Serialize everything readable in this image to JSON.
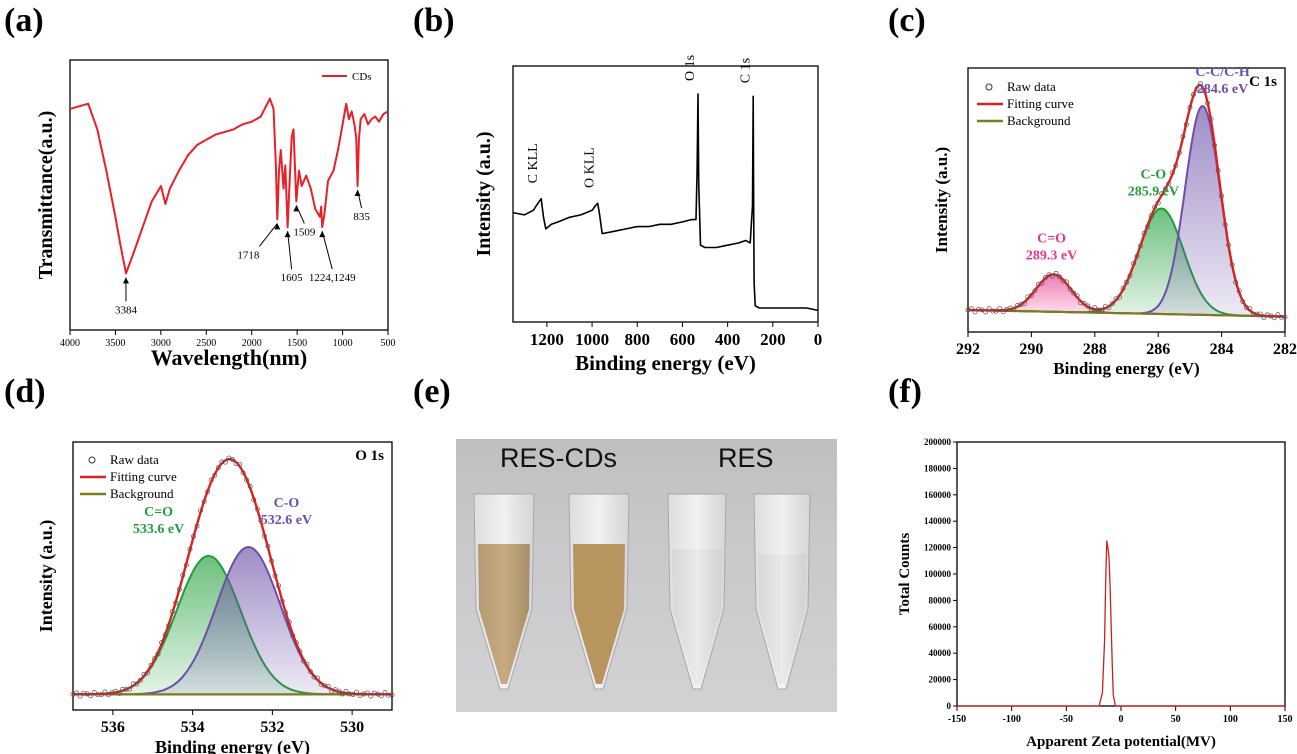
{
  "panels": {
    "a": {
      "label": "(a)"
    },
    "b": {
      "label": "(b)"
    },
    "c": {
      "label": "(c)"
    },
    "d": {
      "label": "(d)"
    },
    "e": {
      "label": "(e)"
    },
    "f": {
      "label": "(f)"
    }
  },
  "photo": {
    "left_label": "RES-CDs",
    "right_label": "RES"
  },
  "chart_data": [
    {
      "id": "a",
      "type": "line",
      "xlabel": "Wavelength(nm)",
      "ylabel": "Transmittance(a.u.)",
      "xlim": [
        4000,
        500
      ],
      "x_ticks": [
        4000,
        3500,
        3000,
        2500,
        2000,
        1500,
        1000,
        500
      ],
      "series": [
        {
          "name": "CDs",
          "color": "#e8202a",
          "x": [
            4000,
            3900,
            3800,
            3700,
            3600,
            3500,
            3450,
            3400,
            3384,
            3300,
            3200,
            3100,
            3000,
            2950,
            2900,
            2800,
            2700,
            2600,
            2500,
            2400,
            2300,
            2200,
            2100,
            2000,
            1900,
            1800,
            1760,
            1735,
            1718,
            1700,
            1680,
            1650,
            1630,
            1605,
            1580,
            1560,
            1540,
            1520,
            1509,
            1480,
            1450,
            1400,
            1350,
            1300,
            1249,
            1235,
            1224,
            1200,
            1160,
            1100,
            1050,
            1000,
            960,
            930,
            900,
            870,
            850,
            835,
            820,
            800,
            760,
            720,
            680,
            640,
            600,
            550,
            500
          ],
          "y": [
            0.86,
            0.87,
            0.88,
            0.78,
            0.62,
            0.44,
            0.34,
            0.25,
            0.22,
            0.3,
            0.4,
            0.5,
            0.56,
            0.49,
            0.55,
            0.62,
            0.68,
            0.72,
            0.74,
            0.76,
            0.77,
            0.78,
            0.8,
            0.81,
            0.83,
            0.9,
            0.86,
            0.65,
            0.43,
            0.62,
            0.7,
            0.55,
            0.64,
            0.4,
            0.6,
            0.75,
            0.78,
            0.6,
            0.5,
            0.62,
            0.56,
            0.6,
            0.55,
            0.47,
            0.44,
            0.48,
            0.4,
            0.45,
            0.58,
            0.62,
            0.7,
            0.8,
            0.88,
            0.82,
            0.85,
            0.8,
            0.75,
            0.56,
            0.74,
            0.82,
            0.84,
            0.8,
            0.82,
            0.83,
            0.81,
            0.84,
            0.85
          ]
        }
      ],
      "annotations": [
        {
          "text": "3384",
          "x": 3384
        },
        {
          "text": "1718",
          "x": 1718
        },
        {
          "text": "1605",
          "x": 1605
        },
        {
          "text": "1509",
          "x": 1509
        },
        {
          "text": "1224,1249",
          "x": 1224
        },
        {
          "text": "835",
          "x": 835
        }
      ],
      "legend": "top-right"
    },
    {
      "id": "b",
      "type": "line",
      "xlabel": "Binding energy (eV)",
      "ylabel": "Intensity (a.u.)",
      "xlim": [
        1350,
        0
      ],
      "x_ticks": [
        1200,
        1000,
        800,
        600,
        400,
        200,
        0
      ],
      "series": [
        {
          "name": "",
          "color": "#000000",
          "x": [
            1350,
            1300,
            1260,
            1240,
            1225,
            1215,
            1205,
            1180,
            1150,
            1100,
            1050,
            1000,
            985,
            975,
            968,
            955,
            900,
            850,
            800,
            750,
            700,
            650,
            600,
            560,
            540,
            535,
            531,
            528,
            520,
            500,
            450,
            400,
            350,
            320,
            300,
            290,
            287,
            285,
            283,
            278,
            260,
            200,
            150,
            100,
            50,
            0
          ],
          "y": [
            0.42,
            0.41,
            0.43,
            0.46,
            0.48,
            0.4,
            0.35,
            0.37,
            0.38,
            0.4,
            0.41,
            0.43,
            0.45,
            0.46,
            0.42,
            0.33,
            0.34,
            0.35,
            0.36,
            0.36,
            0.37,
            0.37,
            0.38,
            0.39,
            0.39,
            0.6,
            0.93,
            0.55,
            0.28,
            0.27,
            0.27,
            0.28,
            0.29,
            0.3,
            0.29,
            0.45,
            0.92,
            0.5,
            0.12,
            0.02,
            0.01,
            0.01,
            0.01,
            0.01,
            0.01,
            0.0
          ]
        }
      ],
      "annotations": [
        {
          "text": "C KLL",
          "x": 1225
        },
        {
          "text": "O KLL",
          "x": 975
        },
        {
          "text": "O 1s",
          "x": 531
        },
        {
          "text": "C 1s",
          "x": 285
        }
      ]
    },
    {
      "id": "c",
      "type": "line",
      "title": "C 1s",
      "xlabel": "Binding energy (eV)",
      "ylabel": "Intensity (a.u.)",
      "xlim": [
        292,
        282
      ],
      "x_ticks": [
        292,
        290,
        288,
        286,
        284,
        282
      ],
      "peaks": [
        {
          "name": "C=O",
          "center": 289.3,
          "label": "289.3 eV",
          "height": 0.17,
          "sigma": 0.55,
          "color": "#e8358c"
        },
        {
          "name": "C-O",
          "center": 285.9,
          "label": "285.9 eV",
          "height": 0.48,
          "sigma": 0.7,
          "color": "#1f9e3a"
        },
        {
          "name": "C-C/C-H",
          "center": 284.6,
          "label": "284.6 eV",
          "height": 0.95,
          "sigma": 0.55,
          "color": "#6c4fa8"
        }
      ],
      "legend": {
        "position": "top-left",
        "entries": [
          "Raw data",
          "Fitting curve",
          "Background"
        ]
      }
    },
    {
      "id": "d",
      "type": "line",
      "title": "O 1s",
      "xlabel": "Binding energy (eV)",
      "ylabel": "Intensity (a.u.)",
      "xlim": [
        537,
        529
      ],
      "x_ticks": [
        536,
        534,
        532,
        530
      ],
      "peaks": [
        {
          "name": "C=O",
          "center": 533.6,
          "label": "533.6 eV",
          "height": 0.62,
          "sigma": 0.8,
          "color": "#1f9e3a"
        },
        {
          "name": "C-O",
          "center": 532.6,
          "label": "532.6 eV",
          "height": 0.66,
          "sigma": 0.8,
          "color": "#6c4fa8"
        }
      ],
      "legend": {
        "position": "top-left",
        "entries": [
          "Raw data",
          "Fitting curve",
          "Background"
        ]
      }
    },
    {
      "id": "f",
      "type": "line",
      "xlabel": "Apparent Zeta potential(MV)",
      "ylabel": "Total Counts",
      "xlim": [
        -150,
        150
      ],
      "ylim": [
        0,
        200000
      ],
      "x_ticks": [
        -150,
        -100,
        -50,
        0,
        50,
        100,
        150
      ],
      "y_ticks": [
        0,
        20000,
        40000,
        60000,
        80000,
        100000,
        120000,
        140000,
        160000,
        180000,
        200000
      ],
      "series": [
        {
          "name": "",
          "color": "#cc1f1f",
          "x": [
            -150,
            -20,
            -17,
            -15,
            -14,
            -13,
            -12,
            -11,
            -10,
            -9,
            -8,
            -7,
            -5,
            150
          ],
          "y": [
            0,
            0,
            10000,
            50000,
            95000,
            125000,
            120000,
            113000,
            90000,
            60000,
            30000,
            8000,
            0,
            0
          ]
        }
      ]
    }
  ]
}
